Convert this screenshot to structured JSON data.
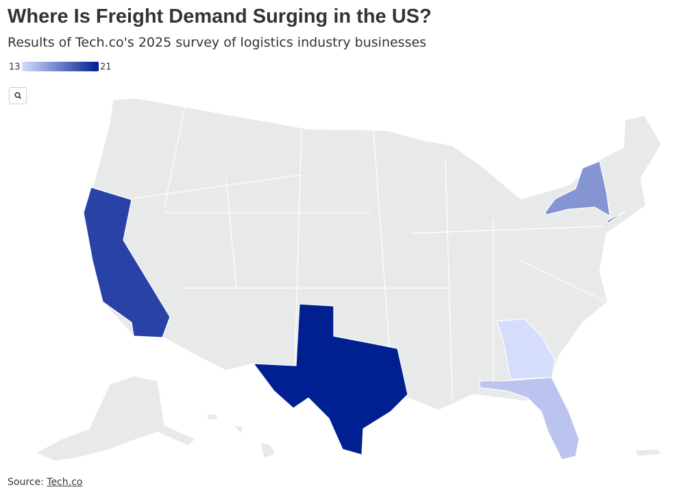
{
  "chart_data": {
    "type": "choropleth",
    "title": "Where Is Freight Demand Surging in the US?",
    "subtitle": "Results of Tech.co's 2025 survey of logistics industry businesses",
    "values": [
      21,
      19.5,
      16,
      14,
      13
    ],
    "zlim": [
      13,
      21
    ],
    "zticks": [
      13,
      21
    ],
    "colorscale": [
      "#d5dcfc",
      "#001f91"
    ],
    "source_label": "Source:",
    "source_link": "Tech.co"
  }
}
